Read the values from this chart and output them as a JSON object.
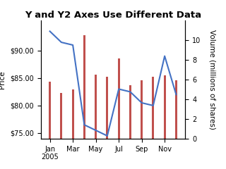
{
  "title": "Y and Y2 Axes Use Different Data",
  "months": [
    "Jan\n2005",
    "Mar",
    "May",
    "Jul",
    "Sep",
    "Nov"
  ],
  "month_positions": [
    1,
    3,
    5,
    7,
    9,
    11
  ],
  "price_data": {
    "x": [
      1,
      2,
      3,
      4,
      5,
      6,
      7,
      8,
      9,
      10,
      11,
      12
    ],
    "y": [
      93.5,
      91.5,
      91.0,
      76.5,
      75.5,
      74.5,
      83.0,
      82.5,
      80.5,
      80.0,
      89.0,
      82.0
    ]
  },
  "volume_data": {
    "x": [
      1,
      2,
      3,
      4,
      5,
      6,
      7,
      8,
      9,
      10,
      11,
      12
    ],
    "y": [
      5.8,
      4.6,
      5.0,
      10.5,
      6.5,
      6.3,
      8.1,
      5.4,
      5.9,
      6.3,
      6.4,
      5.9
    ]
  },
  "price_color": "#4472c4",
  "volume_color": "#c0504d",
  "ylabel": "Price",
  "y2label": "Volume (millions of shares)",
  "ylim": [
    74.0,
    95.5
  ],
  "y2lim": [
    0,
    12.0
  ],
  "yticks": [
    75.0,
    80.0,
    85.0,
    90.0
  ],
  "y2ticks": [
    0,
    2,
    4,
    6,
    8,
    10
  ],
  "background_color": "#ffffff",
  "plot_bg": "#ffffff",
  "title_fontsize": 9.5,
  "label_fontsize": 7.5,
  "tick_fontsize": 7.0
}
